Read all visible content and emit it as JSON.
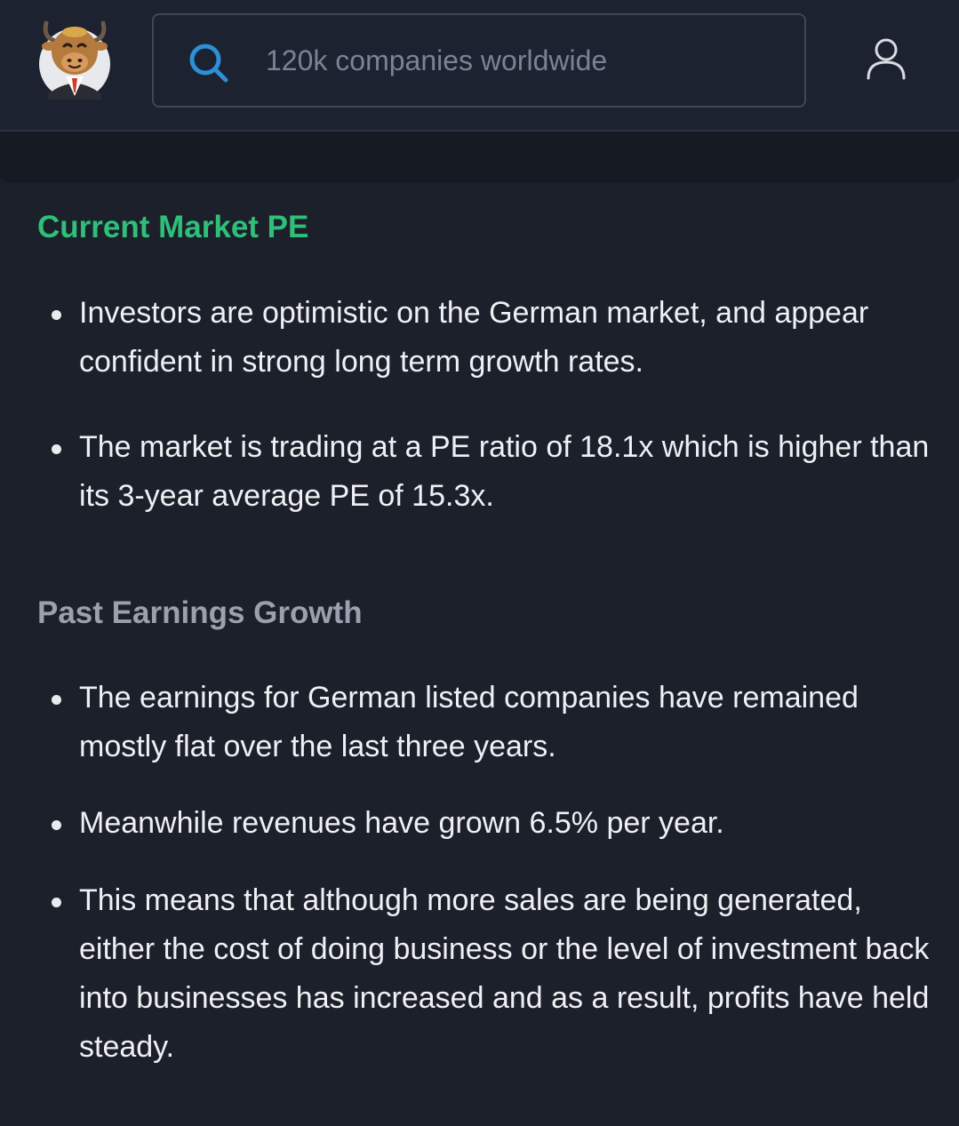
{
  "header": {
    "logo_name": "bull-mascot-logo",
    "search": {
      "placeholder": "120k companies worldwide",
      "value": "",
      "icon": "search-icon"
    },
    "user_icon": "user-icon"
  },
  "sections": [
    {
      "title": "Current Market PE",
      "title_color": "#2fbf78",
      "bullets": [
        "Investors are optimistic on the German market, and appear confident in strong long term growth rates.",
        "The market is trading at a PE ratio of 18.1x which is higher than its 3-year average PE of 15.3x."
      ]
    },
    {
      "title": "Past Earnings Growth",
      "title_color": "#9aa0ac",
      "bullets": [
        "The earnings for German listed companies have remained mostly flat over the last three years.",
        "Meanwhile revenues have grown 6.5% per year.",
        "This means that although more sales are being generated, either the cost of doing business or the level of investment back into businesses has increased and as a result, profits have held steady."
      ]
    }
  ],
  "colors": {
    "background": "#1c202b",
    "accent_green": "#2fbf78",
    "search_icon_blue": "#2d8fd5",
    "text": "#eef0f3"
  }
}
